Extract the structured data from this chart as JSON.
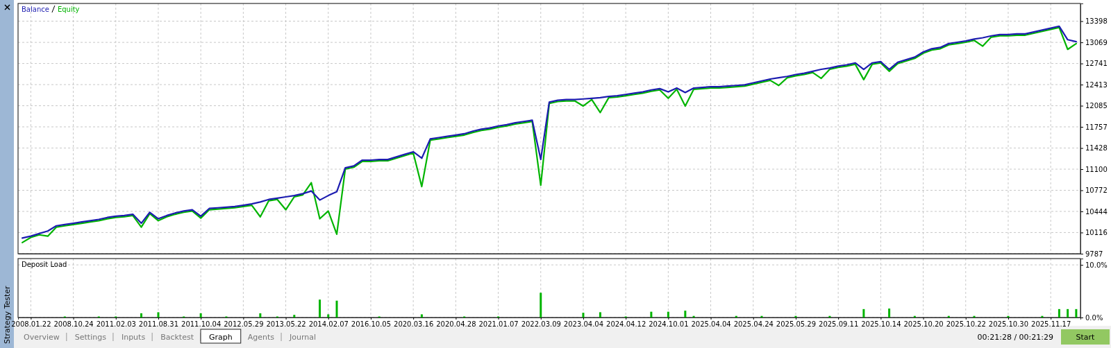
{
  "chart_data": [
    {
      "type": "line",
      "legend": "top left",
      "grid": true,
      "tick_labels": "y",
      "ylim": [
        9787,
        13673
      ],
      "categories": [
        null,
        "2008.01.22",
        null,
        null,
        null,
        null,
        "2008.10.24",
        null,
        null,
        null,
        null,
        "2011.02.03",
        null,
        null,
        null,
        null,
        "2011.08.31",
        null,
        null,
        null,
        null,
        "2011.10.04",
        null,
        null,
        null,
        null,
        "2012.05.29",
        null,
        null,
        null,
        null,
        "2013.05.22",
        null,
        null,
        null,
        null,
        "2014.02.07",
        null,
        null,
        null,
        null,
        "2016.10.05",
        null,
        null,
        null,
        null,
        "2020.03.16",
        null,
        null,
        null,
        null,
        "2020.04.28",
        null,
        null,
        null,
        null,
        "2021.01.07",
        null,
        null,
        null,
        null,
        "2022.03.09",
        null,
        null,
        null,
        null,
        "2023.04.04",
        null,
        null,
        null,
        null,
        "2024.04.12",
        null,
        null,
        null,
        null,
        "2024.10.01",
        null,
        null,
        null,
        null,
        "2025.04.04",
        null,
        null,
        null,
        null,
        "2025.04.24",
        null,
        null,
        null,
        null,
        "2025.05.29",
        null,
        null,
        null,
        null,
        "2025.09.11",
        null,
        null,
        null,
        null,
        "2025.10.14",
        null,
        null,
        null,
        null,
        "2025.10.20",
        null,
        null,
        null,
        null,
        "2025.10.22",
        null,
        null,
        null,
        null,
        "2025.10.30",
        null,
        null,
        null,
        null,
        "2025.11.17",
        null,
        null,
        null
      ],
      "yticks": [
        9787,
        10116,
        10444,
        10772,
        11100,
        11428,
        11757,
        12085,
        12413,
        12741,
        13069,
        13398
      ],
      "series": [
        {
          "name": "Balance",
          "color": "#1c1cb0",
          "values": [
            10030,
            10060,
            10100,
            10140,
            10220,
            10240,
            10260,
            10280,
            10300,
            10320,
            10350,
            10370,
            10380,
            10400,
            10260,
            10430,
            10330,
            10380,
            10420,
            10450,
            10470,
            10370,
            10490,
            10500,
            10510,
            10520,
            10540,
            10560,
            10590,
            10630,
            10650,
            10670,
            10690,
            10720,
            10760,
            10620,
            10690,
            10750,
            11120,
            11150,
            11240,
            11240,
            11250,
            11250,
            11290,
            11330,
            11370,
            11270,
            11570,
            11590,
            11610,
            11630,
            11650,
            11690,
            11720,
            11740,
            11770,
            11790,
            11820,
            11840,
            11860,
            11250,
            12140,
            12170,
            12180,
            12180,
            12190,
            12200,
            12210,
            12230,
            12240,
            12260,
            12280,
            12300,
            12330,
            12350,
            12300,
            12360,
            12290,
            12360,
            12370,
            12380,
            12380,
            12390,
            12400,
            12410,
            12440,
            12470,
            12500,
            12520,
            12540,
            12570,
            12590,
            12620,
            12650,
            12670,
            12700,
            12720,
            12750,
            12650,
            12750,
            12770,
            12650,
            12760,
            12800,
            12840,
            12920,
            12970,
            12990,
            13050,
            13070,
            13090,
            13120,
            13140,
            13170,
            13190,
            13190,
            13200,
            13200,
            13230,
            13260,
            13290,
            13320,
            13110,
            13080
          ]
        },
        {
          "name": "Equity",
          "color": "#00b400",
          "values": [
            9960,
            10040,
            10080,
            10060,
            10200,
            10220,
            10240,
            10260,
            10280,
            10300,
            10330,
            10350,
            10360,
            10380,
            10200,
            10410,
            10300,
            10360,
            10400,
            10430,
            10450,
            10340,
            10470,
            10480,
            10490,
            10500,
            10520,
            10540,
            10360,
            10610,
            10630,
            10470,
            10670,
            10700,
            10890,
            10330,
            10450,
            10090,
            11100,
            11130,
            11220,
            11220,
            11230,
            11230,
            11270,
            11310,
            11350,
            10830,
            11550,
            11570,
            11590,
            11610,
            11630,
            11670,
            11700,
            11720,
            11750,
            11770,
            11800,
            11820,
            11840,
            10850,
            12120,
            12150,
            12160,
            12160,
            12080,
            12180,
            11980,
            12210,
            12220,
            12240,
            12260,
            12280,
            12310,
            12330,
            12200,
            12340,
            12080,
            12340,
            12350,
            12360,
            12360,
            12370,
            12380,
            12390,
            12420,
            12450,
            12480,
            12400,
            12520,
            12550,
            12570,
            12600,
            12510,
            12650,
            12680,
            12700,
            12730,
            12490,
            12730,
            12750,
            12620,
            12740,
            12780,
            12820,
            12900,
            12950,
            12970,
            13030,
            13050,
            13070,
            13100,
            13010,
            13150,
            13170,
            13170,
            13180,
            13180,
            13210,
            13240,
            13270,
            13300,
            12960,
            13050
          ]
        }
      ]
    },
    {
      "type": "bar",
      "title": "Deposit Load",
      "grid": true,
      "color": "#00b400",
      "ylim": [
        0,
        11.2
      ],
      "categories": [
        null,
        "2008.01.22",
        null,
        null,
        null,
        null,
        "2008.10.24",
        null,
        null,
        null,
        null,
        "2011.02.03",
        null,
        null,
        null,
        null,
        "2011.08.31",
        null,
        null,
        null,
        null,
        "2011.10.04",
        null,
        null,
        null,
        null,
        "2012.05.29",
        null,
        null,
        null,
        null,
        "2013.05.22",
        null,
        null,
        null,
        null,
        "2014.02.07",
        null,
        null,
        null,
        null,
        "2016.10.05",
        null,
        null,
        null,
        null,
        "2020.03.16",
        null,
        null,
        null,
        null,
        "2020.04.28",
        null,
        null,
        null,
        null,
        "2021.01.07",
        null,
        null,
        null,
        null,
        "2022.03.09",
        null,
        null,
        null,
        null,
        "2023.04.04",
        null,
        null,
        null,
        null,
        "2024.04.12",
        null,
        null,
        null,
        null,
        "2024.10.01",
        null,
        null,
        null,
        null,
        "2025.04.04",
        null,
        null,
        null,
        null,
        "2025.04.24",
        null,
        null,
        null,
        null,
        "2025.05.29",
        null,
        null,
        null,
        null,
        "2025.09.11",
        null,
        null,
        null,
        null,
        "2025.10.14",
        null,
        null,
        null,
        null,
        "2025.10.20",
        null,
        null,
        null,
        null,
        "2025.10.22",
        null,
        null,
        null,
        null,
        "2025.10.30",
        null,
        null,
        null,
        null,
        "2025.11.17",
        null,
        null,
        null
      ],
      "yticks": [
        {
          "value": 0,
          "label": "0.0%"
        },
        {
          "value": 10,
          "label": "10.0%"
        }
      ],
      "values": [
        0,
        0,
        0,
        0,
        0,
        0.2,
        0,
        0,
        0,
        0.2,
        0,
        0.2,
        0,
        0,
        0.8,
        0,
        1.0,
        0,
        0,
        0.2,
        0,
        0.8,
        0,
        0,
        0.2,
        0,
        0,
        0,
        0.8,
        0,
        0.2,
        0,
        0.5,
        0,
        0,
        3.4,
        0.6,
        3.2,
        0,
        0,
        0,
        0,
        0.2,
        0,
        0,
        0,
        0,
        0.6,
        0,
        0,
        0,
        0,
        0.2,
        0,
        0,
        0,
        0.2,
        0,
        0,
        0,
        0,
        4.7,
        0,
        0,
        0,
        0,
        0.9,
        0,
        1.0,
        0,
        0,
        0.2,
        0,
        0,
        1.1,
        0,
        1.1,
        0,
        1.3,
        0.3,
        0,
        0,
        0,
        0,
        0.3,
        0,
        0,
        0.3,
        0,
        0,
        0,
        0.3,
        0,
        0,
        0,
        0.3,
        0,
        0,
        0,
        1.6,
        0,
        0,
        1.7,
        0,
        0,
        0.3,
        0,
        0,
        0,
        0.3,
        0,
        0,
        0.3,
        0,
        0,
        0,
        0.3,
        0,
        0,
        0,
        0.3,
        0,
        1.6,
        1.6,
        1.6
      ],
      "annotations": [
        "Strategy Tester",
        "Overview",
        "Settings",
        "Inputs",
        "Backtest",
        "Graph",
        "Agents",
        "Journal",
        "00:21:28 / 00:21:29",
        "Start"
      ]
    }
  ]
}
